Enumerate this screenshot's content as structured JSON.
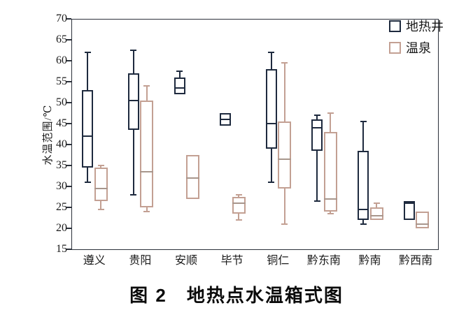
{
  "figure": {
    "caption": "图 2　地热点水温箱式图"
  },
  "chart_data": {
    "type": "boxplot",
    "title": "图 2　地热点水温箱式图",
    "ylabel": "水温范围/℃",
    "xlabel": "",
    "ylim": [
      15,
      70
    ],
    "ytick_step": 5,
    "yticks": [
      70,
      65,
      60,
      55,
      50,
      45,
      40,
      35,
      30,
      25,
      20,
      15
    ],
    "categories": [
      "遵义",
      "贵阳",
      "安顺",
      "毕节",
      "铜仁",
      "黔东南",
      "黔南",
      "黔西南"
    ],
    "grid": false,
    "legend_position": "top-right-inside",
    "colors": {
      "axis": "#2b303a",
      "text": "#1a1a1a",
      "well": "#1e2a3e",
      "spring": "#c3a093"
    },
    "series": [
      {
        "name": "地热井",
        "key": "well",
        "color": "#1e2a3e",
        "boxes": [
          {
            "low": 31,
            "q1": 34.5,
            "median": 42,
            "q3": 53,
            "high": 62
          },
          {
            "low": 28,
            "q1": 43.5,
            "median": 50.5,
            "q3": 57,
            "high": 62.5
          },
          {
            "low": null,
            "q1": 52,
            "median": 53.5,
            "q3": 56,
            "high": 57.5
          },
          {
            "low": null,
            "q1": 44.5,
            "median": 46,
            "q3": 47.5,
            "high": null
          },
          {
            "low": 31,
            "q1": 39,
            "median": 45,
            "q3": 58,
            "high": 62
          },
          {
            "low": 26.5,
            "q1": 38.5,
            "median": 44,
            "q3": 46,
            "high": 47
          },
          {
            "low": 21,
            "q1": 22,
            "median": 24.5,
            "q3": 38.5,
            "high": 45.5
          },
          {
            "low": null,
            "q1": 22,
            "median": 26,
            "q3": 26.5,
            "high": null
          }
        ]
      },
      {
        "name": "温泉",
        "key": "spring",
        "color": "#c3a093",
        "median_color": "#a8968c",
        "boxes": [
          {
            "low": 24.5,
            "q1": 26.5,
            "median": 29.5,
            "q3": 34.5,
            "high": 35
          },
          {
            "low": 24,
            "q1": 25,
            "median": 33.5,
            "q3": 50.5,
            "high": 54
          },
          {
            "low": null,
            "q1": 27,
            "median": 32,
            "q3": 37.5,
            "high": null
          },
          {
            "low": 22,
            "q1": 23.5,
            "median": 26,
            "q3": 27.5,
            "high": 28
          },
          {
            "low": 21,
            "q1": 29.5,
            "median": 36.5,
            "q3": 45.5,
            "high": 59.5
          },
          {
            "low": 23.5,
            "q1": 24,
            "median": 27,
            "q3": 43,
            "high": 47.5
          },
          {
            "low": null,
            "q1": 22,
            "median": 23,
            "q3": 25,
            "high": 26
          },
          {
            "low": null,
            "q1": 20,
            "median": 21,
            "q3": 24,
            "high": null
          }
        ]
      }
    ]
  }
}
